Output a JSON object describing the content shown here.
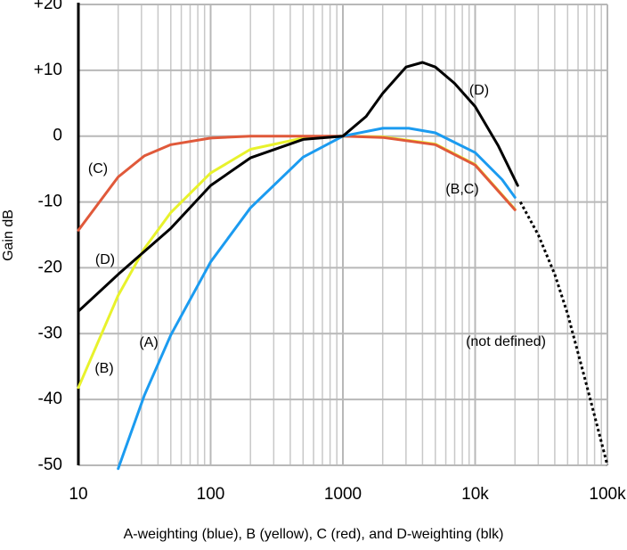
{
  "chart_data": {
    "type": "line",
    "xlabel": "A-weighting (blue), B (yellow), C (red), and D-weighting (blk)",
    "ylabel": "Gain dB",
    "xscale": "log",
    "grid": true,
    "xlim": [
      10,
      100000
    ],
    "xticks": [
      10,
      100,
      1000,
      {
        "value": 10000,
        "label": "10k"
      },
      {
        "value": 100000,
        "label": "100k"
      }
    ],
    "ylim": [
      -50,
      20
    ],
    "yticks": [
      {
        "value": 20,
        "label": "+20"
      },
      {
        "value": 10,
        "label": "+10"
      },
      0,
      -10,
      -20,
      -30,
      -40,
      -50
    ],
    "series": [
      {
        "color": "#e8f22c",
        "style": "solid",
        "x": [
          10,
          20,
          31.5,
          50,
          100,
          200,
          500,
          1000,
          2000,
          5000,
          10000,
          20000
        ],
        "values": [
          -38.2,
          -24.2,
          -17.1,
          -11.6,
          -5.6,
          -2.0,
          -0.3,
          0,
          -0.1,
          -1.2,
          -4.3,
          -11.1
        ]
      },
      {
        "color": "#e0593a",
        "style": "solid",
        "x": [
          10,
          20,
          31.5,
          50,
          100,
          200,
          500,
          1000,
          2000,
          5000,
          10000,
          20000
        ],
        "values": [
          -14.3,
          -6.2,
          -3.0,
          -1.3,
          -0.3,
          0,
          0,
          0,
          -0.2,
          -1.3,
          -4.4,
          -11.2
        ]
      },
      {
        "color": "#1b9bf0",
        "style": "solid",
        "x": [
          20,
          31.5,
          50,
          100,
          200,
          500,
          1000,
          2000,
          3150,
          5000,
          10000,
          16000,
          20000
        ],
        "values": [
          -50.5,
          -39.4,
          -30.2,
          -19.1,
          -10.9,
          -3.2,
          0,
          1.2,
          1.2,
          0.5,
          -2.5,
          -6.6,
          -9.3
        ]
      },
      {
        "color": "#000000",
        "style": "solid",
        "x": [
          10,
          20,
          50,
          100,
          200,
          500,
          1000,
          1500,
          2000,
          3000,
          4000,
          5000,
          7000,
          10000,
          15000,
          21000
        ],
        "values": [
          -26.6,
          -21,
          -14,
          -7.5,
          -3.3,
          -0.5,
          0,
          3,
          6.5,
          10.5,
          11.2,
          10.5,
          8,
          4.5,
          -1.5,
          -7.5
        ]
      },
      {
        "color": "#000000",
        "style": "dotted",
        "x": [
          22000,
          30000,
          40000,
          50000,
          70000,
          100000
        ],
        "values": [
          -10,
          -15,
          -21,
          -27,
          -38,
          -50
        ]
      }
    ],
    "annotations": [
      "(C)",
      "(D)",
      "(B)",
      "(A)",
      "(D)",
      "(B,C)",
      "(not defined)"
    ]
  }
}
